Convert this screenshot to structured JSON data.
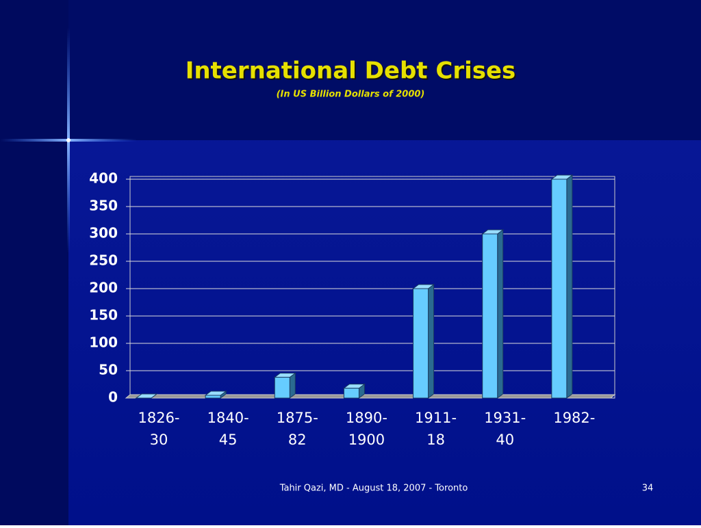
{
  "chart_data": {
    "type": "bar3d",
    "title": "International Debt Crises",
    "subtitle": "(In US Billion Dollars of 2000)",
    "categories": [
      [
        "1826-",
        "30"
      ],
      [
        "1840-",
        "45"
      ],
      [
        "1875-",
        "82"
      ],
      [
        "1890-",
        "1900"
      ],
      [
        "1911-",
        "18"
      ],
      [
        "1931-",
        "40"
      ],
      [
        "1982-"
      ]
    ],
    "values": [
      0,
      5,
      38,
      18,
      200,
      300,
      400
    ],
    "color": "#66ccff",
    "ylim": [
      0,
      400
    ],
    "yticks": [
      0,
      50,
      100,
      150,
      200,
      250,
      300,
      350,
      400
    ],
    "grid": true
  },
  "footer": {
    "text": "Tahir Qazi, MD - August 18, 2007 - Toronto",
    "page": "34"
  }
}
